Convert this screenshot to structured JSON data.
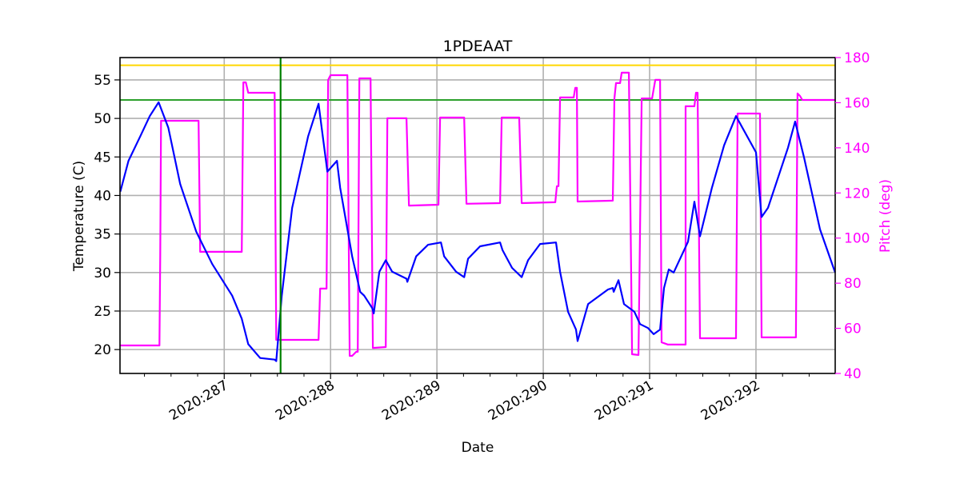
{
  "chart_data": {
    "type": "line",
    "title": "1PDEAAT",
    "xlabel": "Date",
    "ylabel": "Temperature (C)",
    "y2label": "Pitch (deg)",
    "xlim": [
      286.02,
      292.745
    ],
    "ylim": [
      16.9,
      57.9
    ],
    "y2lim": [
      40,
      180
    ],
    "x_ticks": [
      287,
      288,
      289,
      290,
      291,
      292
    ],
    "x_tick_labels": [
      "2020:287",
      "2020:288",
      "2020:289",
      "2020:290",
      "2020:291",
      "2020:292"
    ],
    "x_minor_step": 0.25,
    "y_ticks": [
      20,
      25,
      30,
      35,
      40,
      45,
      50,
      55
    ],
    "y2_ticks": [
      40,
      60,
      80,
      100,
      120,
      140,
      160,
      180
    ],
    "grid": true,
    "colors": {
      "temperature": "#0000ff",
      "pitch": "#ff00ff",
      "limit_high": "#ffd700",
      "limit_low": "#2ca02c",
      "marker": "#008000",
      "pitch_axis": "#ff00ff"
    },
    "hlines": [
      {
        "y": 56.9,
        "color": "#ffd700"
      },
      {
        "y": 52.4,
        "color": "#2ca02c"
      }
    ],
    "vlines": [
      {
        "x": 287.53,
        "color": "#008000"
      }
    ],
    "series": [
      {
        "axis": "left",
        "color": "#0000ff",
        "points": [
          [
            286.023,
            40.5
          ],
          [
            286.1,
            44.5
          ],
          [
            286.211,
            47.7
          ],
          [
            286.3,
            50.3
          ],
          [
            286.383,
            52.1
          ],
          [
            286.474,
            48.8
          ],
          [
            286.586,
            41.5
          ],
          [
            286.737,
            35.3
          ],
          [
            286.887,
            31.1
          ],
          [
            287.075,
            27.0
          ],
          [
            287.165,
            24.0
          ],
          [
            287.226,
            20.7
          ],
          [
            287.338,
            18.9
          ],
          [
            287.474,
            18.7
          ],
          [
            287.489,
            18.5
          ],
          [
            287.541,
            27.0
          ],
          [
            287.639,
            38.4
          ],
          [
            287.789,
            47.7
          ],
          [
            287.887,
            51.9
          ],
          [
            287.97,
            43.1
          ],
          [
            288.06,
            44.5
          ],
          [
            288.09,
            41.0
          ],
          [
            288.203,
            32.1
          ],
          [
            288.278,
            27.5
          ],
          [
            288.316,
            27.0
          ],
          [
            288.391,
            25.4
          ],
          [
            288.406,
            24.7
          ],
          [
            288.459,
            30.1
          ],
          [
            288.519,
            31.6
          ],
          [
            288.579,
            30.1
          ],
          [
            288.714,
            29.2
          ],
          [
            288.722,
            28.8
          ],
          [
            288.805,
            32.1
          ],
          [
            288.917,
            33.6
          ],
          [
            289.038,
            33.9
          ],
          [
            289.068,
            32.1
          ],
          [
            289.18,
            30.1
          ],
          [
            289.256,
            29.4
          ],
          [
            289.293,
            31.8
          ],
          [
            289.406,
            33.4
          ],
          [
            289.594,
            33.9
          ],
          [
            289.617,
            32.9
          ],
          [
            289.707,
            30.6
          ],
          [
            289.797,
            29.4
          ],
          [
            289.857,
            31.6
          ],
          [
            289.97,
            33.7
          ],
          [
            290.12,
            33.9
          ],
          [
            290.158,
            30.1
          ],
          [
            290.233,
            24.9
          ],
          [
            290.308,
            22.6
          ],
          [
            290.323,
            21.1
          ],
          [
            290.421,
            25.9
          ],
          [
            290.609,
            27.8
          ],
          [
            290.654,
            28.0
          ],
          [
            290.662,
            27.5
          ],
          [
            290.707,
            29.0
          ],
          [
            290.759,
            25.9
          ],
          [
            290.857,
            24.9
          ],
          [
            290.91,
            23.3
          ],
          [
            290.985,
            22.8
          ],
          [
            291.038,
            22.0
          ],
          [
            291.098,
            22.6
          ],
          [
            291.135,
            28.0
          ],
          [
            291.18,
            30.4
          ],
          [
            291.226,
            30.0
          ],
          [
            291.361,
            34.0
          ],
          [
            291.421,
            39.2
          ],
          [
            291.474,
            34.7
          ],
          [
            291.586,
            41.0
          ],
          [
            291.7,
            46.5
          ],
          [
            291.812,
            50.3
          ],
          [
            292.0,
            45.6
          ],
          [
            292.053,
            37.2
          ],
          [
            292.113,
            38.4
          ],
          [
            292.301,
            46.2
          ],
          [
            292.368,
            49.6
          ],
          [
            292.451,
            45.0
          ],
          [
            292.602,
            35.6
          ],
          [
            292.744,
            30.0
          ]
        ]
      },
      {
        "axis": "right",
        "color": "#ff00ff",
        "points": [
          [
            286.023,
            52.4
          ],
          [
            286.391,
            52.4
          ],
          [
            286.398,
            92.1
          ],
          [
            286.406,
            152.0
          ],
          [
            286.759,
            152.0
          ],
          [
            286.774,
            93.9
          ],
          [
            287.165,
            93.9
          ],
          [
            287.18,
            169.0
          ],
          [
            287.203,
            169.0
          ],
          [
            287.226,
            164.4
          ],
          [
            287.474,
            164.4
          ],
          [
            287.489,
            54.9
          ],
          [
            287.887,
            54.9
          ],
          [
            287.902,
            77.6
          ],
          [
            287.962,
            77.6
          ],
          [
            287.977,
            170.1
          ],
          [
            288.0,
            172.2
          ],
          [
            288.158,
            172.2
          ],
          [
            288.18,
            47.8
          ],
          [
            288.203,
            47.8
          ],
          [
            288.241,
            49.6
          ],
          [
            288.256,
            49.6
          ],
          [
            288.271,
            170.8
          ],
          [
            288.376,
            170.8
          ],
          [
            288.398,
            51.3
          ],
          [
            288.519,
            51.7
          ],
          [
            288.534,
            153.1
          ],
          [
            288.714,
            153.1
          ],
          [
            288.737,
            114.4
          ],
          [
            289.015,
            114.8
          ],
          [
            289.03,
            153.4
          ],
          [
            289.256,
            153.4
          ],
          [
            289.278,
            115.2
          ],
          [
            289.594,
            115.5
          ],
          [
            289.609,
            153.4
          ],
          [
            289.774,
            153.4
          ],
          [
            289.797,
            115.5
          ],
          [
            290.113,
            115.9
          ],
          [
            290.128,
            123.0
          ],
          [
            290.143,
            123.0
          ],
          [
            290.158,
            162.3
          ],
          [
            290.286,
            162.3
          ],
          [
            290.301,
            166.6
          ],
          [
            290.316,
            166.6
          ],
          [
            290.323,
            116.2
          ],
          [
            290.654,
            116.6
          ],
          [
            290.669,
            161.9
          ],
          [
            290.684,
            168.7
          ],
          [
            290.722,
            168.7
          ],
          [
            290.737,
            173.3
          ],
          [
            290.805,
            173.3
          ],
          [
            290.835,
            48.5
          ],
          [
            290.895,
            48.2
          ],
          [
            290.925,
            161.9
          ],
          [
            291.023,
            161.9
          ],
          [
            291.053,
            170.1
          ],
          [
            291.098,
            170.1
          ],
          [
            291.113,
            53.8
          ],
          [
            291.173,
            52.8
          ],
          [
            291.338,
            52.8
          ],
          [
            291.338,
            158.4
          ],
          [
            291.421,
            158.4
          ],
          [
            291.436,
            164.4
          ],
          [
            291.451,
            164.4
          ],
          [
            291.474,
            55.6
          ],
          [
            291.812,
            55.6
          ],
          [
            291.827,
            155.2
          ],
          [
            292.038,
            155.2
          ],
          [
            292.053,
            56.0
          ],
          [
            292.376,
            56.0
          ],
          [
            292.391,
            164.1
          ],
          [
            292.414,
            163.0
          ],
          [
            292.436,
            161.2
          ],
          [
            292.744,
            161.2
          ]
        ]
      }
    ]
  }
}
